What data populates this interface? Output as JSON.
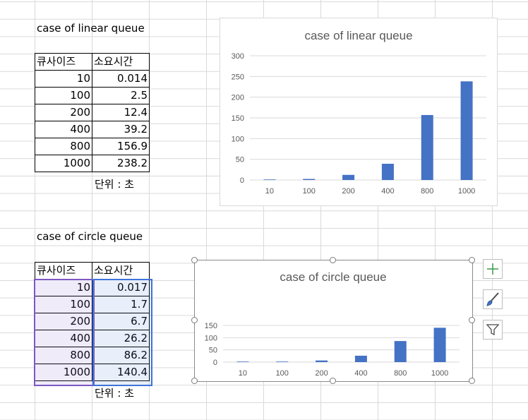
{
  "linear": {
    "title": "case of linear queue",
    "header": [
      "큐사이즈",
      "소요시간"
    ],
    "rows": [
      [
        "10",
        "0.014"
      ],
      [
        "100",
        "2.5"
      ],
      [
        "200",
        "12.4"
      ],
      [
        "400",
        "39.2"
      ],
      [
        "800",
        "156.9"
      ],
      [
        "1000",
        "238.2"
      ]
    ],
    "unit": "단위 : 초"
  },
  "circle": {
    "title": "case of circle queue",
    "header": [
      "큐사이즈",
      "소요시간"
    ],
    "rows": [
      [
        "10",
        "0.017"
      ],
      [
        "100",
        "1.7"
      ],
      [
        "200",
        "6.7"
      ],
      [
        "400",
        "26.2"
      ],
      [
        "800",
        "86.2"
      ],
      [
        "1000",
        "140.4"
      ]
    ],
    "unit": "단위 : 초"
  },
  "colors": {
    "bar": "#4472c4",
    "grid": "#d9d9d9",
    "axis_text": "#595959"
  },
  "chart_data": [
    {
      "type": "bar",
      "title": "case of linear queue",
      "categories": [
        "10",
        "100",
        "200",
        "400",
        "800",
        "1000"
      ],
      "values": [
        0.014,
        2.5,
        12.4,
        39.2,
        156.9,
        238.2
      ],
      "yticks": [
        "0",
        "50",
        "100",
        "150",
        "200",
        "250",
        "300"
      ],
      "ylim": [
        0,
        300
      ],
      "grid": true,
      "legend": "none"
    },
    {
      "type": "bar",
      "title": "case of circle queue",
      "categories": [
        "10",
        "100",
        "200",
        "400",
        "800",
        "1000"
      ],
      "values": [
        0.017,
        1.7,
        6.7,
        26.2,
        86.2,
        140.4
      ],
      "yticks": [
        "0",
        "50",
        "100",
        "150"
      ],
      "ylim": [
        0,
        150
      ],
      "grid": true,
      "legend": "none"
    }
  ],
  "chart_tools": [
    "chart-elements",
    "chart-styles",
    "chart-filters"
  ]
}
